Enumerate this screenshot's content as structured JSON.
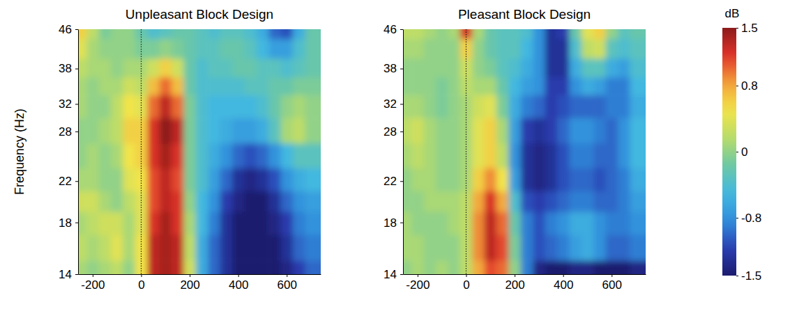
{
  "chart_data": [
    {
      "type": "heatmap",
      "title": "Unpleasant Block Design",
      "ylabel": "Frequency (Hz)",
      "log": "y",
      "xlim": [
        -260,
        740
      ],
      "xticks": [
        -200,
        0,
        200,
        400,
        600
      ],
      "ylim": [
        14,
        46
      ],
      "yticks": [
        14,
        18,
        22,
        28,
        32,
        38,
        46
      ],
      "vline": 0,
      "zlim": [
        -1.5,
        1.5
      ],
      "x": [
        -250,
        -200,
        -150,
        -100,
        -50,
        0,
        50,
        100,
        150,
        200,
        250,
        300,
        350,
        400,
        450,
        500,
        550,
        600,
        650,
        700
      ],
      "y": [
        14,
        16,
        18,
        20,
        22,
        25,
        28,
        32,
        35,
        38,
        42,
        46
      ],
      "z": [
        [
          0.1,
          0.0,
          0.1,
          0.2,
          0.0,
          0.5,
          1.3,
          1.4,
          1.3,
          0.3,
          -0.6,
          -1.0,
          -1.3,
          -1.5,
          -1.5,
          -1.5,
          -1.5,
          -1.4,
          -1.2,
          -1.0
        ],
        [
          0.2,
          0.1,
          0.2,
          0.4,
          0.1,
          0.5,
          1.3,
          1.4,
          1.3,
          0.2,
          -0.6,
          -1.0,
          -1.3,
          -1.5,
          -1.5,
          -1.5,
          -1.5,
          -1.3,
          -1.0,
          -0.9
        ],
        [
          0.1,
          0.2,
          0.3,
          0.3,
          0.1,
          0.4,
          1.2,
          1.4,
          1.2,
          0.1,
          -0.5,
          -0.9,
          -1.3,
          -1.5,
          -1.5,
          -1.5,
          -1.4,
          -1.2,
          -0.9,
          -0.8
        ],
        [
          0.3,
          0.3,
          0.1,
          0.0,
          0.2,
          0.4,
          1.1,
          1.3,
          1.2,
          0.0,
          -0.5,
          -0.8,
          -1.2,
          -1.4,
          -1.5,
          -1.5,
          -1.3,
          -1.0,
          -0.8,
          -0.7
        ],
        [
          0.1,
          0.1,
          0.0,
          0.0,
          0.4,
          0.5,
          1.1,
          1.3,
          1.1,
          -0.1,
          -0.4,
          -0.7,
          -1.0,
          -1.3,
          -1.4,
          -1.3,
          -1.1,
          -0.8,
          -0.6,
          -0.5
        ],
        [
          0.0,
          0.1,
          0.0,
          0.1,
          0.5,
          0.6,
          1.2,
          1.4,
          1.2,
          -0.1,
          -0.4,
          -0.6,
          -0.8,
          -1.0,
          -1.1,
          -1.0,
          -0.8,
          -0.5,
          -0.3,
          -0.3
        ],
        [
          0.0,
          0.0,
          0.1,
          0.2,
          0.6,
          0.6,
          1.2,
          1.5,
          1.3,
          -0.1,
          -0.4,
          -0.5,
          -0.6,
          -0.7,
          -0.7,
          -0.6,
          -0.3,
          0.1,
          0.2,
          0.0
        ],
        [
          0.1,
          0.0,
          0.0,
          0.2,
          0.5,
          0.4,
          1.0,
          1.3,
          1.0,
          -0.1,
          -0.4,
          -0.5,
          -0.5,
          -0.5,
          -0.5,
          -0.4,
          -0.2,
          0.0,
          0.1,
          0.0
        ],
        [
          0.1,
          0.0,
          0.1,
          0.1,
          0.3,
          0.2,
          0.7,
          1.0,
          0.7,
          -0.2,
          -0.4,
          -0.4,
          -0.4,
          -0.4,
          -0.3,
          -0.3,
          -0.2,
          -0.2,
          -0.1,
          -0.1
        ],
        [
          0.2,
          0.1,
          0.1,
          0.0,
          0.1,
          0.1,
          0.3,
          0.6,
          0.3,
          -0.2,
          -0.4,
          -0.3,
          -0.3,
          -0.2,
          -0.2,
          -0.3,
          -0.3,
          -0.4,
          -0.3,
          -0.2
        ],
        [
          0.4,
          0.1,
          0.0,
          0.0,
          0.0,
          -0.1,
          -0.1,
          0.0,
          -0.1,
          -0.2,
          -0.3,
          -0.3,
          -0.2,
          -0.2,
          -0.3,
          -0.5,
          -0.7,
          -0.7,
          -0.4,
          -0.2
        ],
        [
          0.6,
          0.2,
          -0.1,
          0.0,
          0.0,
          -0.2,
          -0.4,
          -0.3,
          -0.2,
          -0.2,
          -0.3,
          -0.4,
          -0.3,
          -0.3,
          -0.4,
          -0.6,
          -1.0,
          -1.1,
          -0.6,
          -0.2
        ]
      ]
    },
    {
      "type": "heatmap",
      "title": "Pleasant Block Design",
      "log": "y",
      "xlim": [
        -260,
        740
      ],
      "xticks": [
        -200,
        0,
        200,
        400,
        600
      ],
      "ylim": [
        14,
        46
      ],
      "yticks": [
        14,
        18,
        22,
        28,
        32,
        38,
        46
      ],
      "vline": 0,
      "zlim": [
        -1.5,
        1.5
      ],
      "zticks": [
        -1.5,
        -0.8,
        0,
        0.8,
        1.5
      ],
      "colorbar_label": "dB",
      "x": [
        -250,
        -200,
        -150,
        -100,
        -50,
        0,
        50,
        100,
        150,
        200,
        250,
        300,
        350,
        400,
        450,
        500,
        550,
        600,
        650,
        700
      ],
      "y": [
        14,
        16,
        18,
        20,
        22,
        25,
        28,
        32,
        35,
        38,
        42,
        46
      ],
      "z": [
        [
          0.0,
          0.1,
          0.0,
          0.1,
          0.0,
          0.2,
          0.8,
          1.1,
          1.0,
          0.0,
          -0.9,
          -1.4,
          -1.5,
          -1.5,
          -1.4,
          -1.4,
          -1.5,
          -1.5,
          -1.5,
          -1.4
        ],
        [
          0.1,
          0.1,
          0.0,
          0.0,
          0.0,
          0.2,
          0.9,
          1.3,
          1.1,
          -0.1,
          -0.9,
          -1.1,
          -1.0,
          -0.9,
          -0.7,
          -0.6,
          -0.8,
          -1.0,
          -1.0,
          -0.9
        ],
        [
          0.1,
          0.0,
          0.0,
          0.0,
          0.1,
          0.2,
          0.9,
          1.3,
          1.0,
          -0.2,
          -0.9,
          -1.1,
          -0.9,
          -0.8,
          -0.6,
          -0.6,
          -0.8,
          -0.9,
          -0.9,
          -0.8
        ],
        [
          0.0,
          0.0,
          0.1,
          0.1,
          0.1,
          0.2,
          0.8,
          1.2,
          0.8,
          -0.4,
          -1.1,
          -1.2,
          -1.1,
          -1.0,
          -0.9,
          -0.9,
          -1.0,
          -1.0,
          -0.9,
          -0.7
        ],
        [
          0.0,
          0.1,
          0.1,
          0.0,
          0.0,
          0.1,
          0.6,
          0.9,
          0.5,
          -0.7,
          -1.3,
          -1.4,
          -1.3,
          -1.1,
          -1.0,
          -1.0,
          -1.1,
          -1.0,
          -0.9,
          -0.6
        ],
        [
          0.1,
          0.2,
          0.1,
          0.0,
          0.0,
          0.1,
          0.4,
          0.6,
          0.2,
          -0.8,
          -1.3,
          -1.4,
          -1.3,
          -1.1,
          -0.9,
          -0.9,
          -1.0,
          -1.0,
          -0.8,
          -0.5
        ],
        [
          0.2,
          0.3,
          0.1,
          0.0,
          0.0,
          0.1,
          0.4,
          0.6,
          0.1,
          -0.7,
          -1.2,
          -1.3,
          -1.2,
          -1.0,
          -0.8,
          -0.8,
          -0.9,
          -1.0,
          -0.8,
          -0.5
        ],
        [
          0.1,
          0.1,
          0.0,
          -0.1,
          0.0,
          0.1,
          0.3,
          0.4,
          -0.1,
          -0.6,
          -0.9,
          -1.0,
          -1.2,
          -1.1,
          -1.0,
          -1.0,
          -1.0,
          -0.9,
          -0.9,
          -0.6
        ],
        [
          0.0,
          0.0,
          0.0,
          -0.1,
          0.0,
          0.2,
          0.1,
          0.1,
          -0.2,
          -0.5,
          -0.7,
          -0.8,
          -1.2,
          -1.2,
          -0.8,
          -0.6,
          -0.7,
          -0.9,
          -0.9,
          -0.5
        ],
        [
          0.0,
          0.0,
          0.0,
          0.0,
          0.0,
          0.3,
          0.0,
          -0.1,
          -0.3,
          -0.4,
          -0.6,
          -0.8,
          -1.3,
          -1.3,
          -0.6,
          -0.3,
          -0.3,
          -0.6,
          -0.7,
          -0.4
        ],
        [
          0.1,
          0.1,
          0.0,
          0.0,
          0.0,
          0.6,
          0.0,
          -0.2,
          -0.3,
          -0.3,
          -0.5,
          -0.8,
          -1.3,
          -1.3,
          -0.4,
          0.2,
          0.3,
          -0.3,
          -0.4,
          -0.3
        ],
        [
          0.2,
          0.2,
          0.1,
          0.0,
          0.1,
          1.2,
          0.1,
          -0.2,
          -0.3,
          -0.3,
          -0.4,
          -0.8,
          -1.3,
          -1.2,
          -0.2,
          0.4,
          0.6,
          0.0,
          -0.3,
          -0.2
        ]
      ]
    }
  ]
}
